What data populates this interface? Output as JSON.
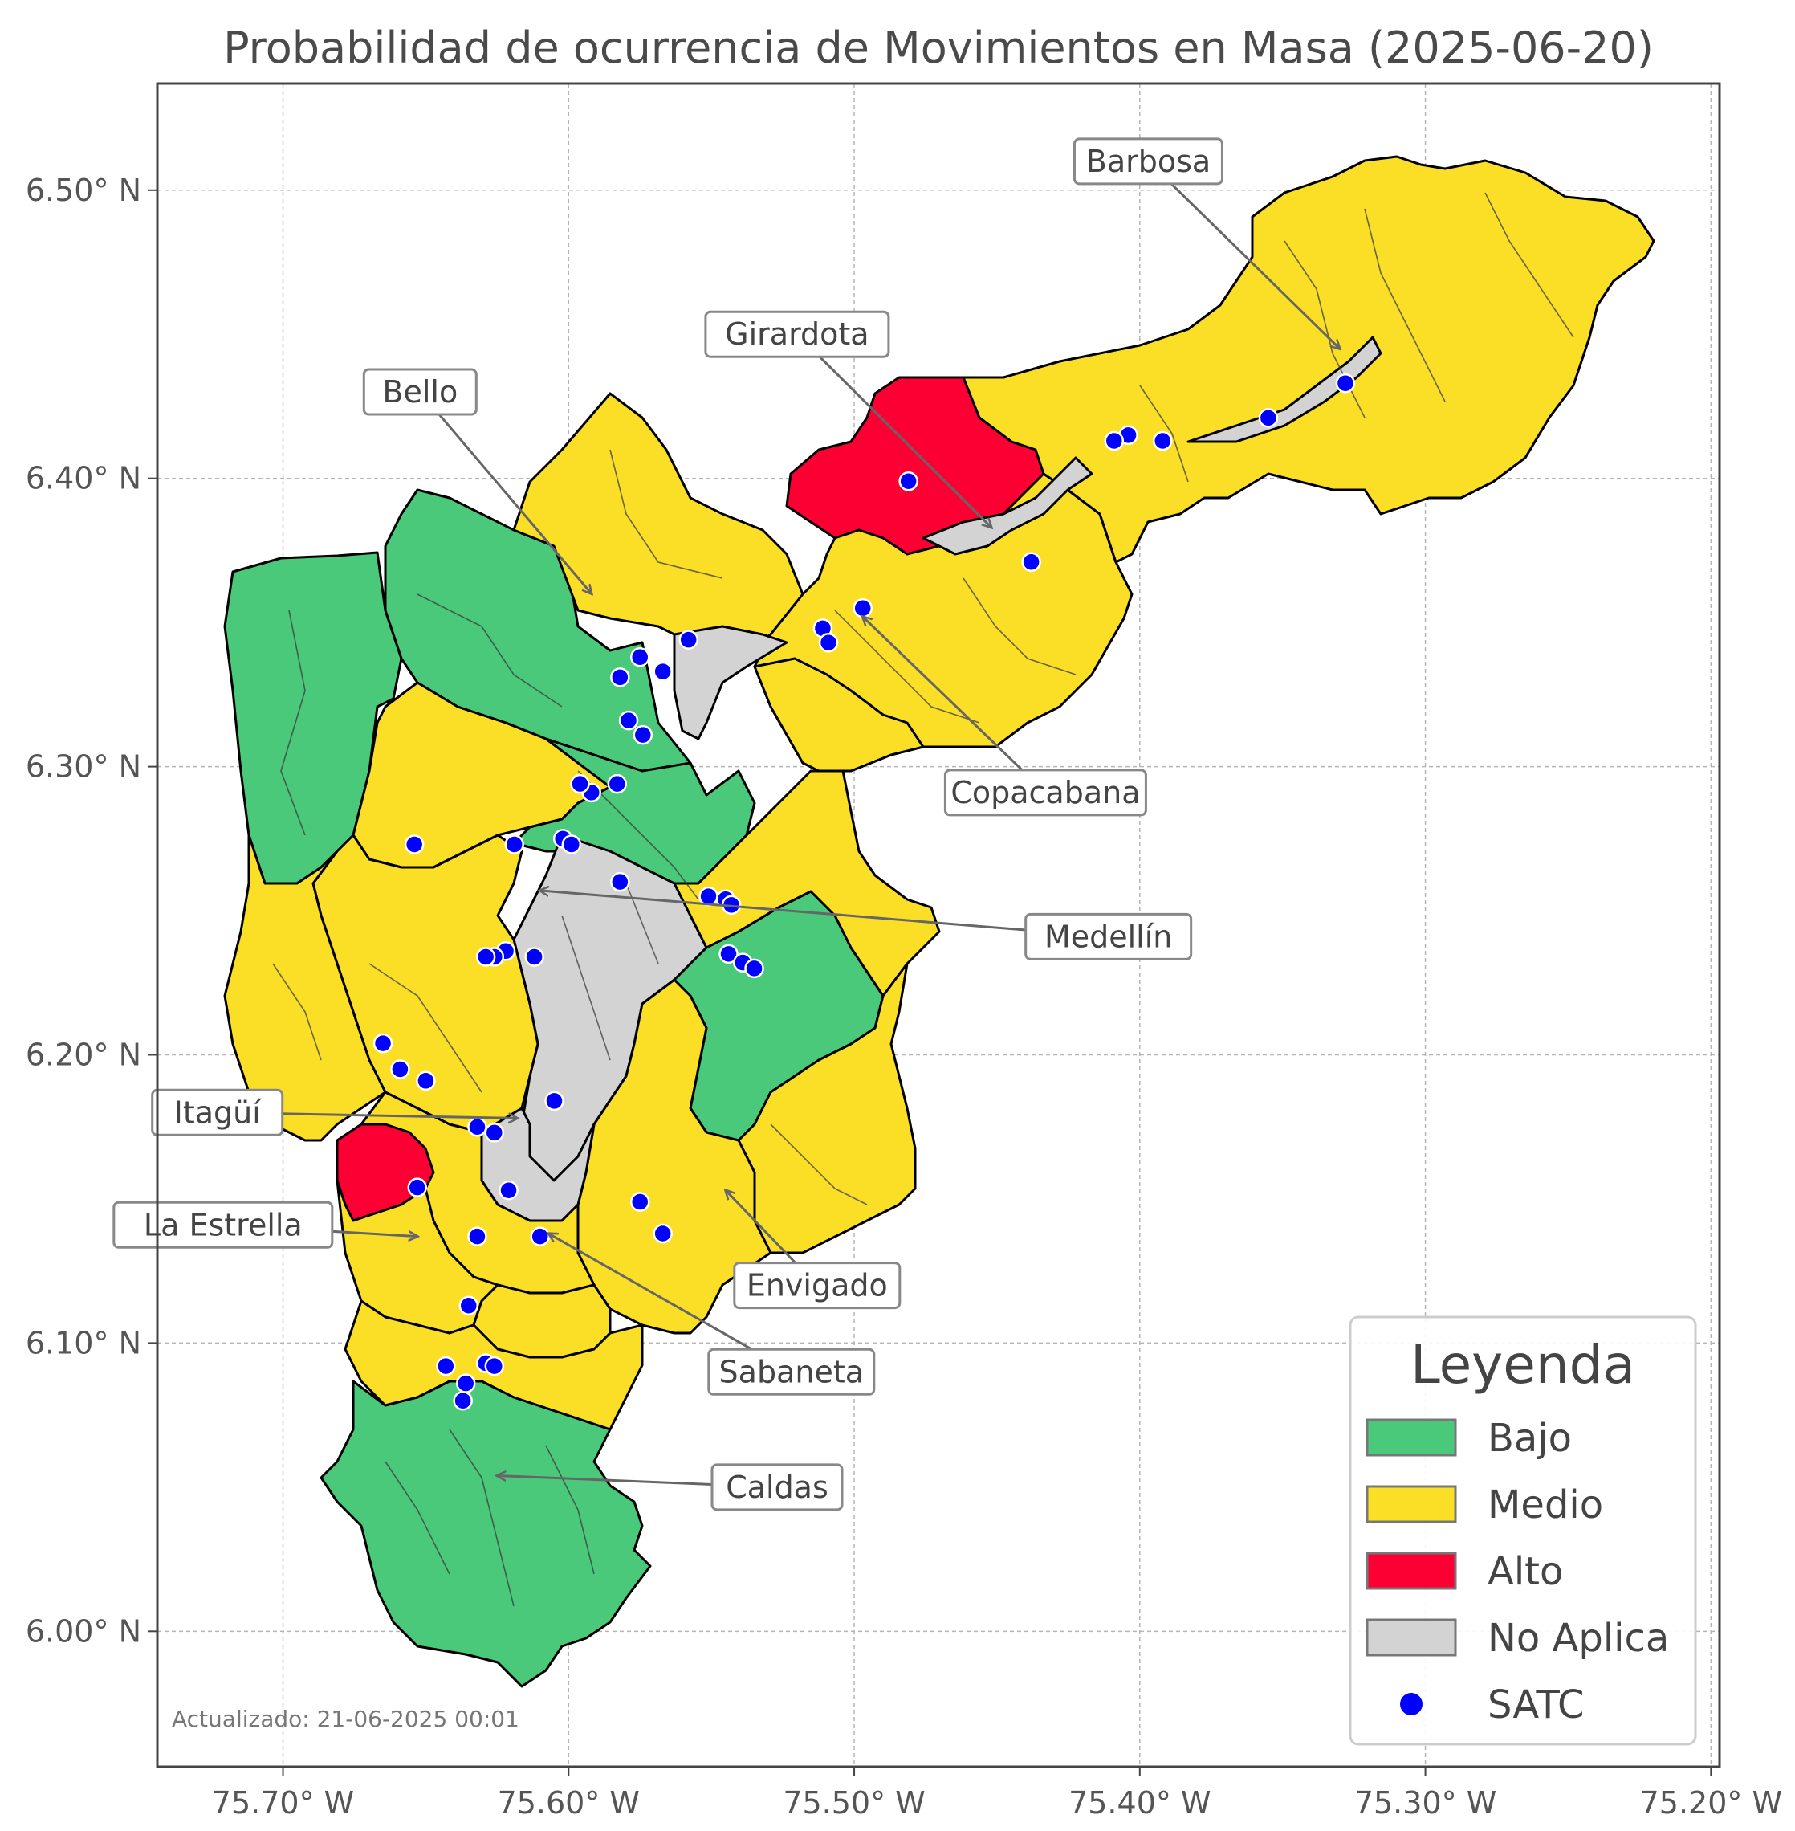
{
  "title": "Probabilidad de ocurrencia de Movimientos en Masa (2025-06-20)",
  "updated": "Actualizado: 21-06-2025 00:01",
  "axes": {
    "x_ticks": [
      "75.70° W",
      "75.60° W",
      "75.50° W",
      "75.40° W",
      "75.30° W",
      "75.20° W"
    ],
    "y_ticks": [
      "6.50° N",
      "6.40° N",
      "6.30° N",
      "6.20° N",
      "6.10° N",
      "6.00° N"
    ],
    "x_values": [
      -75.7,
      -75.6,
      -75.5,
      -75.4,
      -75.3,
      -75.2
    ],
    "y_values": [
      6.5,
      6.4,
      6.3,
      6.2,
      6.1,
      6.0
    ],
    "lon_range": [
      -75.744,
      -75.197
    ],
    "lat_range": [
      5.953,
      6.537
    ],
    "grid": true
  },
  "colors": {
    "bajo": "#4ac97a",
    "medio": "#fbdf27",
    "alto": "#fc0034",
    "no_aplica": "#d3d3d3",
    "satc": "#0000ff"
  },
  "legend": {
    "title": "Leyenda",
    "placement": "bottom-right",
    "items": [
      {
        "label": "Bajo",
        "kind": "bajo"
      },
      {
        "label": "Medio",
        "kind": "medio"
      },
      {
        "label": "Alto",
        "kind": "alto"
      },
      {
        "label": "No Aplica",
        "kind": "no_aplica"
      },
      {
        "label": "SATC",
        "kind": "satc"
      }
    ]
  },
  "municipalities": [
    {
      "name": "Barbosa",
      "level": "Medio",
      "label_lon": -75.397,
      "label_lat": 6.51,
      "target_lon": -75.33,
      "target_lat": 6.445
    },
    {
      "name": "Girardota",
      "level": "Medio",
      "label_lon": -75.52,
      "label_lat": 6.45,
      "target_lon": -75.452,
      "target_lat": 6.383
    },
    {
      "name": "Bello",
      "level": "Bajo",
      "label_lon": -75.652,
      "label_lat": 6.43,
      "target_lon": -75.592,
      "target_lat": 6.36
    },
    {
      "name": "Copacabana",
      "level": "Medio",
      "label_lon": -75.433,
      "label_lat": 6.291,
      "target_lon": -75.497,
      "target_lat": 6.352
    },
    {
      "name": "Medellín",
      "level": "Medio",
      "label_lon": -75.411,
      "label_lat": 6.241,
      "target_lon": -75.61,
      "target_lat": 6.257
    },
    {
      "name": "Itagüí",
      "level": "Medio",
      "label_lon": -75.723,
      "label_lat": 6.18,
      "target_lon": -75.618,
      "target_lat": 6.178
    },
    {
      "name": "La Estrella",
      "level": "Medio",
      "label_lon": -75.721,
      "label_lat": 6.141,
      "target_lon": -75.653,
      "target_lat": 6.137
    },
    {
      "name": "Envigado",
      "level": "Medio",
      "label_lon": -75.513,
      "label_lat": 6.12,
      "target_lon": -75.545,
      "target_lat": 6.153
    },
    {
      "name": "Sabaneta",
      "level": "Medio",
      "label_lon": -75.522,
      "label_lat": 6.09,
      "target_lon": -75.607,
      "target_lat": 6.138
    },
    {
      "name": "Caldas",
      "level": "Bajo",
      "label_lon": -75.527,
      "label_lat": 6.05,
      "target_lon": -75.625,
      "target_lat": 6.054
    }
  ],
  "satc_points": [
    [
      -75.328,
      6.433
    ],
    [
      -75.355,
      6.421
    ],
    [
      -75.392,
      6.413
    ],
    [
      -75.404,
      6.415
    ],
    [
      -75.409,
      6.413
    ],
    [
      -75.481,
      6.399
    ],
    [
      -75.438,
      6.371
    ],
    [
      -75.497,
      6.355
    ],
    [
      -75.511,
      6.348
    ],
    [
      -75.509,
      6.343
    ],
    [
      -75.558,
      6.344
    ],
    [
      -75.567,
      6.333
    ],
    [
      -75.575,
      6.338
    ],
    [
      -75.582,
      6.331
    ],
    [
      -75.579,
      6.316
    ],
    [
      -75.574,
      6.311
    ],
    [
      -75.592,
      6.291
    ],
    [
      -75.596,
      6.294
    ],
    [
      -75.583,
      6.294
    ],
    [
      -75.602,
      6.275
    ],
    [
      -75.599,
      6.273
    ],
    [
      -75.619,
      6.273
    ],
    [
      -75.654,
      6.273
    ],
    [
      -75.582,
      6.26
    ],
    [
      -75.551,
      6.255
    ],
    [
      -75.545,
      6.254
    ],
    [
      -75.543,
      6.252
    ],
    [
      -75.544,
      6.235
    ],
    [
      -75.539,
      6.232
    ],
    [
      -75.535,
      6.23
    ],
    [
      -75.612,
      6.234
    ],
    [
      -75.622,
      6.236
    ],
    [
      -75.626,
      6.234
    ],
    [
      -75.629,
      6.234
    ],
    [
      -75.605,
      6.184
    ],
    [
      -75.665,
      6.204
    ],
    [
      -75.659,
      6.195
    ],
    [
      -75.65,
      6.191
    ],
    [
      -75.632,
      6.175
    ],
    [
      -75.626,
      6.173
    ],
    [
      -75.653,
      6.154
    ],
    [
      -75.621,
      6.153
    ],
    [
      -75.575,
      6.149
    ],
    [
      -75.567,
      6.138
    ],
    [
      -75.61,
      6.137
    ],
    [
      -75.632,
      6.137
    ],
    [
      -75.635,
      6.113
    ],
    [
      -75.643,
      6.092
    ],
    [
      -75.629,
      6.093
    ],
    [
      -75.626,
      6.092
    ],
    [
      -75.636,
      6.086
    ],
    [
      -75.637,
      6.08
    ]
  ]
}
